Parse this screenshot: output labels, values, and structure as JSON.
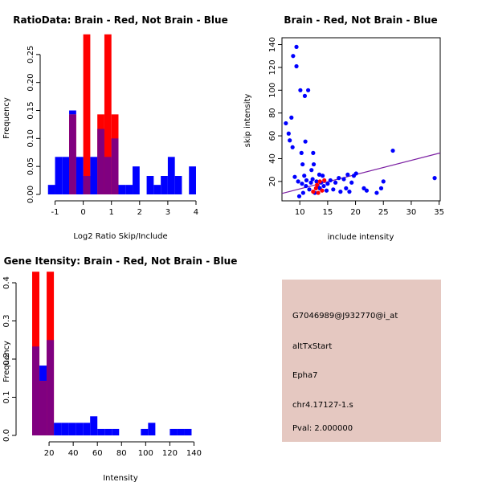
{
  "colors": {
    "red": "#ff0000",
    "blue": "#0000ff",
    "overlap": "#800080",
    "info_bg": "#e5c8c1",
    "pval_color": "#8b0000",
    "line": "#7b1fa2"
  },
  "chart_data": [
    {
      "type": "histogram",
      "title": "RatioData: Brain - Red, Not Brain - Blue",
      "xlabel": "Log2 Ratio Skip/Include",
      "ylabel": "Frequency",
      "xlim": [
        -1.3,
        4.2
      ],
      "ylim": [
        0,
        0.3
      ],
      "xticks": [
        -1,
        0,
        1,
        2,
        3,
        4
      ],
      "yticks": [
        0,
        0.05,
        0.1,
        0.15,
        0.2,
        0.25
      ],
      "ytick_labels": [
        "0.00",
        "0.05",
        "0.10",
        "0.15",
        "0.20",
        "0.25"
      ],
      "bin_width": 0.25,
      "series": [
        {
          "name": "Not Brain",
          "color": "blue",
          "bins": [
            {
              "x": -1.25,
              "v": 0.017
            },
            {
              "x": -1.0,
              "v": 0.067
            },
            {
              "x": -0.75,
              "v": 0.067
            },
            {
              "x": -0.5,
              "v": 0.15
            },
            {
              "x": -0.25,
              "v": 0.067
            },
            {
              "x": 0.0,
              "v": 0.033
            },
            {
              "x": 0.25,
              "v": 0.067
            },
            {
              "x": 0.5,
              "v": 0.117
            },
            {
              "x": 0.75,
              "v": 0.067
            },
            {
              "x": 1.0,
              "v": 0.1
            },
            {
              "x": 1.25,
              "v": 0.017
            },
            {
              "x": 1.5,
              "v": 0.017
            },
            {
              "x": 1.75,
              "v": 0.05
            },
            {
              "x": 2.0,
              "v": 0.0
            },
            {
              "x": 2.25,
              "v": 0.033
            },
            {
              "x": 2.5,
              "v": 0.017
            },
            {
              "x": 2.75,
              "v": 0.033
            },
            {
              "x": 3.0,
              "v": 0.067
            },
            {
              "x": 3.25,
              "v": 0.033
            },
            {
              "x": 3.5,
              "v": 0.0
            },
            {
              "x": 3.75,
              "v": 0.05
            }
          ]
        },
        {
          "name": "Brain",
          "color": "red",
          "bins": [
            {
              "x": -0.5,
              "v": 0.143
            },
            {
              "x": -0.25,
              "v": 0.0
            },
            {
              "x": 0.0,
              "v": 0.286
            },
            {
              "x": 0.25,
              "v": 0.0
            },
            {
              "x": 0.5,
              "v": 0.143
            },
            {
              "x": 0.75,
              "v": 0.286
            },
            {
              "x": 1.0,
              "v": 0.143
            }
          ]
        }
      ]
    },
    {
      "type": "scatter",
      "title": "Brain - Red, Not Brain - Blue",
      "xlabel": "include intensity",
      "ylabel": "skip intensity",
      "xlim": [
        6.8,
        35.2
      ],
      "ylim": [
        3,
        146
      ],
      "xticks": [
        10,
        15,
        20,
        25,
        30,
        35
      ],
      "yticks": [
        20,
        40,
        60,
        80,
        100,
        120,
        140
      ],
      "regression_line": [
        [
          6.8,
          9.5
        ],
        [
          35.2,
          45
        ]
      ],
      "series": [
        {
          "name": "Not Brain",
          "color": "blue",
          "points": [
            [
              7.5,
              71
            ],
            [
              8.0,
              62
            ],
            [
              8.2,
              56
            ],
            [
              8.5,
              76
            ],
            [
              8.7,
              50
            ],
            [
              8.8,
              130
            ],
            [
              9.1,
              24
            ],
            [
              9.4,
              138
            ],
            [
              9.4,
              121
            ],
            [
              9.7,
              20
            ],
            [
              9.9,
              7
            ],
            [
              10.1,
              100
            ],
            [
              10.3,
              45
            ],
            [
              10.4,
              18
            ],
            [
              10.5,
              35
            ],
            [
              10.6,
              10
            ],
            [
              10.8,
              25
            ],
            [
              10.9,
              95
            ],
            [
              11.0,
              55
            ],
            [
              11.1,
              16
            ],
            [
              11.2,
              21
            ],
            [
              11.5,
              100
            ],
            [
              11.7,
              13
            ],
            [
              12.0,
              19
            ],
            [
              12.1,
              30
            ],
            [
              12.3,
              22
            ],
            [
              12.4,
              45
            ],
            [
              12.5,
              35
            ],
            [
              12.7,
              10
            ],
            [
              13.0,
              20
            ],
            [
              13.2,
              16
            ],
            [
              13.5,
              26
            ],
            [
              13.6,
              14
            ],
            [
              13.8,
              19
            ],
            [
              14.1,
              25
            ],
            [
              14.3,
              16
            ],
            [
              14.8,
              12
            ],
            [
              15.0,
              18
            ],
            [
              15.5,
              21
            ],
            [
              16.0,
              13
            ],
            [
              16.4,
              19
            ],
            [
              17.0,
              23
            ],
            [
              17.3,
              11
            ],
            [
              17.9,
              22
            ],
            [
              18.3,
              14
            ],
            [
              18.6,
              26
            ],
            [
              18.9,
              11
            ],
            [
              19.3,
              19
            ],
            [
              19.7,
              25
            ],
            [
              20.1,
              27
            ],
            [
              21.5,
              14
            ],
            [
              22.0,
              12
            ],
            [
              23.8,
              10
            ],
            [
              24.6,
              14
            ],
            [
              25.0,
              20
            ],
            [
              26.7,
              47
            ],
            [
              34.2,
              23
            ]
          ]
        },
        {
          "name": "Brain",
          "color": "red",
          "points": [
            [
              12.4,
              11
            ],
            [
              12.9,
              14
            ],
            [
              13.1,
              17
            ],
            [
              13.3,
              10
            ],
            [
              13.6,
              20
            ],
            [
              14.0,
              12
            ],
            [
              14.4,
              21
            ]
          ]
        }
      ]
    },
    {
      "type": "histogram",
      "title": "Gene Itensity: Brain - Red, Not Brain - Blue",
      "xlabel": "Intensity",
      "ylabel": "Frequency",
      "xlim": [
        -2,
        147
      ],
      "ylim": [
        0,
        0.44
      ],
      "xticks": [
        20,
        40,
        60,
        80,
        100,
        120,
        140
      ],
      "yticks": [
        0.0,
        0.1,
        0.2,
        0.3,
        0.4
      ],
      "ytick_labels": [
        "0.0",
        "0.1",
        "0.2",
        "0.3",
        "0.4"
      ],
      "bin_width": 6,
      "series": [
        {
          "name": "Not Brain",
          "color": "blue",
          "bins": [
            {
              "x": 6,
              "v": 0.233
            },
            {
              "x": 12,
              "v": 0.183
            },
            {
              "x": 18,
              "v": 0.25
            },
            {
              "x": 24,
              "v": 0.033
            },
            {
              "x": 30,
              "v": 0.033
            },
            {
              "x": 36,
              "v": 0.033
            },
            {
              "x": 42,
              "v": 0.033
            },
            {
              "x": 48,
              "v": 0.033
            },
            {
              "x": 54,
              "v": 0.05
            },
            {
              "x": 60,
              "v": 0.017
            },
            {
              "x": 66,
              "v": 0.017
            },
            {
              "x": 72,
              "v": 0.017
            },
            {
              "x": 78,
              "v": 0.0
            },
            {
              "x": 84,
              "v": 0.0
            },
            {
              "x": 90,
              "v": 0.0
            },
            {
              "x": 96,
              "v": 0.017
            },
            {
              "x": 102,
              "v": 0.033
            },
            {
              "x": 108,
              "v": 0.0
            },
            {
              "x": 114,
              "v": 0.0
            },
            {
              "x": 120,
              "v": 0.017
            },
            {
              "x": 126,
              "v": 0.017
            },
            {
              "x": 132,
              "v": 0.017
            }
          ]
        },
        {
          "name": "Brain",
          "color": "red",
          "bins": [
            {
              "x": 6,
              "v": 0.429
            },
            {
              "x": 12,
              "v": 0.143
            },
            {
              "x": 18,
              "v": 0.429
            }
          ]
        }
      ]
    }
  ],
  "info_panel": {
    "probe_id": "G7046989@J932770@i_at",
    "event_type": "altTxStart",
    "gene": "Epha7",
    "location": "chr4.17127-1.s",
    "pval": "Pval: 2.000000"
  }
}
